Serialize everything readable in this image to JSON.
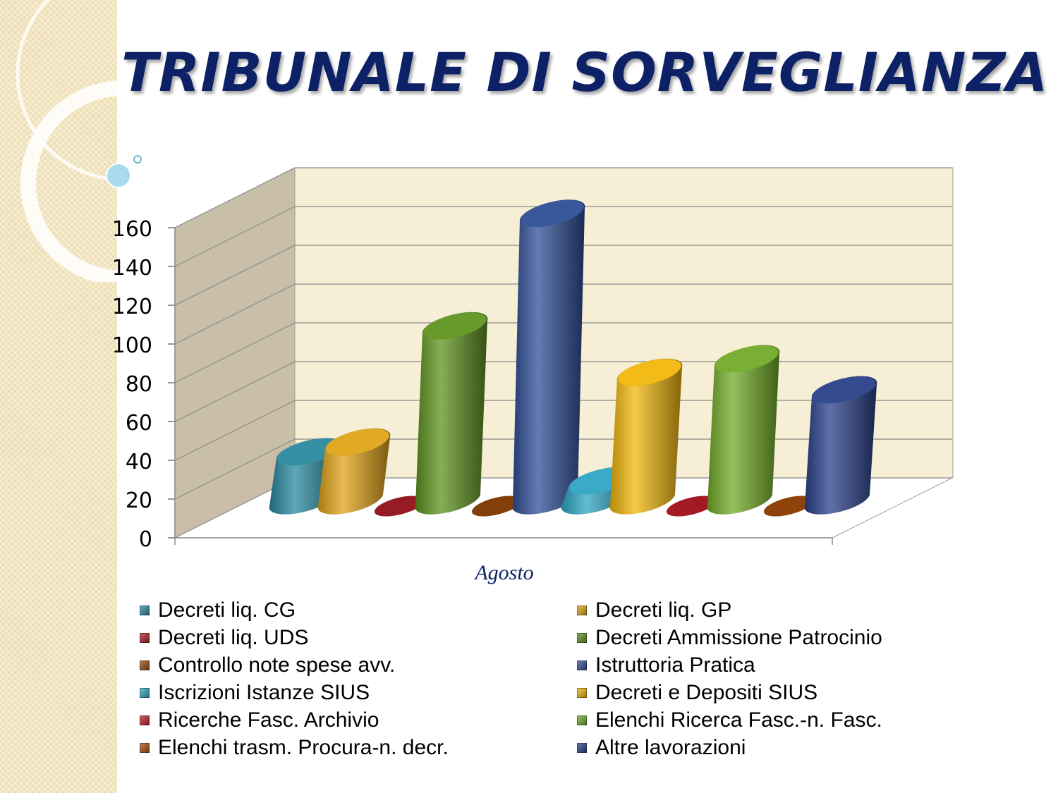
{
  "slide": {
    "title": "TRIBUNALE DI SORVEGLIANZA"
  },
  "chart_data": {
    "type": "bar",
    "style": "3d-cylinder",
    "categories": [
      "Agosto"
    ],
    "xlabel": "Agosto",
    "ylabel": "",
    "ylim": [
      0,
      160
    ],
    "yticks": [
      "0",
      "20",
      "40",
      "60",
      "80",
      "100",
      "120",
      "140",
      "160"
    ],
    "grid": true,
    "legend_position": "bottom",
    "series": [
      {
        "name": "Decreti liq. CG",
        "values": [
          25
        ],
        "color": "#2a8aa0"
      },
      {
        "name": "Decreti liq. GP",
        "values": [
          30
        ],
        "color": "#e0a419"
      },
      {
        "name": "Decreti liq. UDS",
        "values": [
          0
        ],
        "color": "#b0202a"
      },
      {
        "name": "Decreti Ammissione Patrocinio",
        "values": [
          90
        ],
        "color": "#5f9420"
      },
      {
        "name": "Controllo note spese avv.",
        "values": [
          0
        ],
        "color": "#9a4a0c"
      },
      {
        "name": "Istruttoria Pratica",
        "values": [
          148
        ],
        "color": "#2f4f96"
      },
      {
        "name": "Iscrizioni Istanze SIUS",
        "values": [
          10
        ],
        "color": "#2fa6c4"
      },
      {
        "name": "Decreti e Depositi SIUS",
        "values": [
          66
        ],
        "color": "#f2b70c"
      },
      {
        "name": "Ricerche Fasc. Archivio",
        "values": [
          0
        ],
        "color": "#c01e2a"
      },
      {
        "name": "Elenchi Ricerca Fasc.-n. Fasc.",
        "values": [
          73
        ],
        "color": "#72ac28"
      },
      {
        "name": "Elenchi trasm. Procura-n. decr.",
        "values": [
          0
        ],
        "color": "#a84e0c"
      },
      {
        "name": "Altre lavorazioni",
        "values": [
          57
        ],
        "color": "#29418a"
      }
    ]
  }
}
